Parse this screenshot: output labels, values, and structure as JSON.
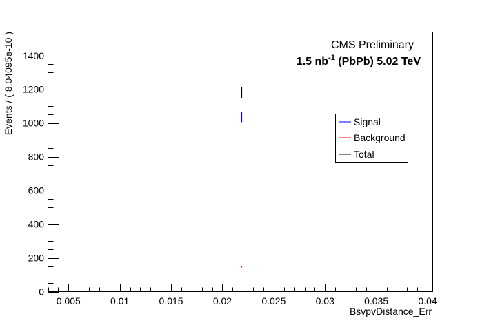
{
  "chart_data": {
    "type": "line",
    "xlabel": "BsvpvDistance_Err",
    "ylabel": "Events / ( 8.04095e-10 )",
    "xlim": [
      0.003,
      0.0405
    ],
    "ylim": [
      0,
      1540
    ],
    "x_ticks": [
      0.005,
      0.01,
      0.015,
      0.02,
      0.025,
      0.03,
      0.035,
      0.04
    ],
    "x_tick_labels": [
      "0.005",
      "0.01",
      "0.015",
      "0.02",
      "0.025",
      "0.03",
      "0.035",
      "0.04"
    ],
    "y_ticks": [
      0,
      200,
      400,
      600,
      800,
      1000,
      1200,
      1400
    ],
    "y_tick_labels": [
      "0",
      "200",
      "400",
      "600",
      "800",
      "1000",
      "1200",
      "1400"
    ],
    "annotation_cms": "CMS Preliminary",
    "annotation_lumi": {
      "prefix": "1.5 nb",
      "sup": "-1",
      "suffix": " (PbPb) 5.02 TeV"
    },
    "legend_position": "top-right",
    "series": [
      {
        "name": "Signal",
        "color": "#0000ff",
        "x": [
          0.02187
        ],
        "y_low": [
          1005
        ],
        "y_high": [
          1065
        ]
      },
      {
        "name": "Background",
        "color": "#ff0000",
        "x": [
          0.02187
        ],
        "y_low": [
          143
        ],
        "y_high": [
          150
        ]
      },
      {
        "name": "Total",
        "color": "#000000",
        "x": [
          0.02187
        ],
        "y_low": [
          1150
        ],
        "y_high": [
          1215
        ]
      }
    ]
  }
}
